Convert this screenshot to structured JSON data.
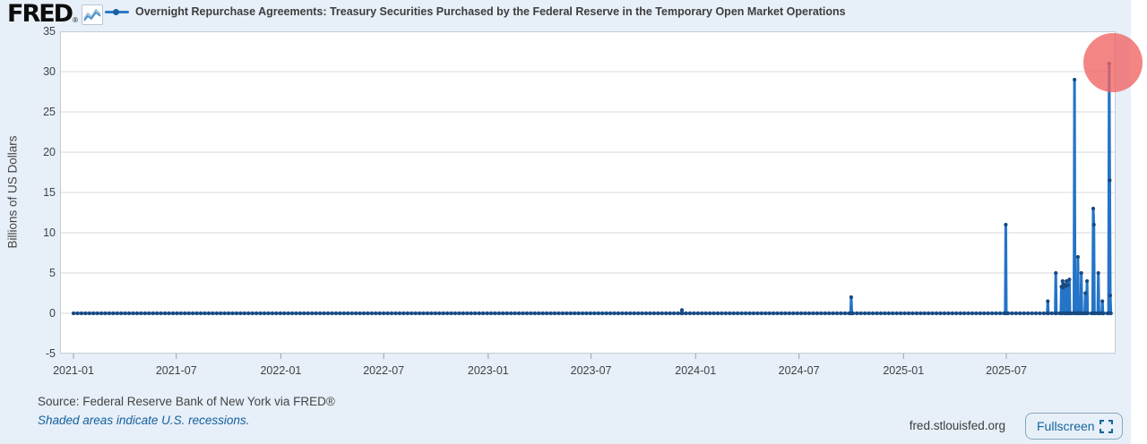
{
  "brand": {
    "logo_text": "FRED",
    "registered_mark": "®"
  },
  "header": {
    "series_label": "Overnight Repurchase Agreements: Treasury Securities Purchased by the Federal Reserve in the Temporary Open Market Operations"
  },
  "footer": {
    "source_text": "Source: Federal Reserve Bank of New York via FRED®",
    "recessions_link": "Shaded areas indicate U.S. recessions.",
    "site_text": "fred.stlouisfed.org",
    "fullscreen_label": "Fullscreen"
  },
  "colors": {
    "background": "#e7eff8",
    "line": "#2474c8",
    "marker": "#174a80",
    "grid": "#d9d9d9",
    "plot_border": "#c6ccd2",
    "highlight": "rgba(240,99,99,0.78)",
    "link_blue": "#1261a0",
    "button_blue": "#17679d"
  },
  "chart_data": {
    "type": "line",
    "title": "Overnight Repurchase Agreements: Treasury Securities Purchased by the Federal Reserve in the Temporary Open Market Operations",
    "xlabel": "",
    "ylabel": "Billions of US Dollars",
    "ylim": [
      -5,
      35
    ],
    "y_ticks": [
      -5,
      0,
      5,
      10,
      15,
      20,
      25,
      30,
      35
    ],
    "x_ticks": [
      "2021-01",
      "2021-07",
      "2022-01",
      "2022-07",
      "2023-01",
      "2023-07",
      "2024-01",
      "2024-07",
      "2025-01",
      "2025-07"
    ],
    "x_start_date": "2021-01-01",
    "x_end_date": "2025-12-31",
    "grid": "horizontal gridlines only",
    "legend_position": "top",
    "baseline_value": 0,
    "baseline_note": "Series is 0 (flat line with daily markers) on all dates except the spikes listed below",
    "spikes": [
      [
        "2023-12-08",
        0.4
      ],
      [
        "2024-10-01",
        2
      ],
      [
        "2025-06-30",
        11
      ],
      [
        "2025-09-12",
        1.5
      ],
      [
        "2025-09-26",
        5
      ],
      [
        "2025-10-06",
        3.3
      ],
      [
        "2025-10-08",
        4
      ],
      [
        "2025-10-09",
        3.2
      ],
      [
        "2025-10-10",
        3.6
      ],
      [
        "2025-10-13",
        3.4
      ],
      [
        "2025-10-15",
        4
      ],
      [
        "2025-10-17",
        3.5
      ],
      [
        "2025-10-20",
        4.2
      ],
      [
        "2025-10-29",
        29
      ],
      [
        "2025-11-04",
        7
      ],
      [
        "2025-11-10",
        5
      ],
      [
        "2025-11-17",
        2.5
      ],
      [
        "2025-11-20",
        4
      ],
      [
        "2025-12-01",
        13
      ],
      [
        "2025-12-02",
        11
      ],
      [
        "2025-12-10",
        5
      ],
      [
        "2025-12-17",
        1.5
      ],
      [
        "2025-12-29",
        31
      ],
      [
        "2025-12-30",
        16.5
      ],
      [
        "2025-12-31",
        2.2
      ]
    ],
    "annotation": "red circle highlighting the final 31 billion spike at far right"
  }
}
